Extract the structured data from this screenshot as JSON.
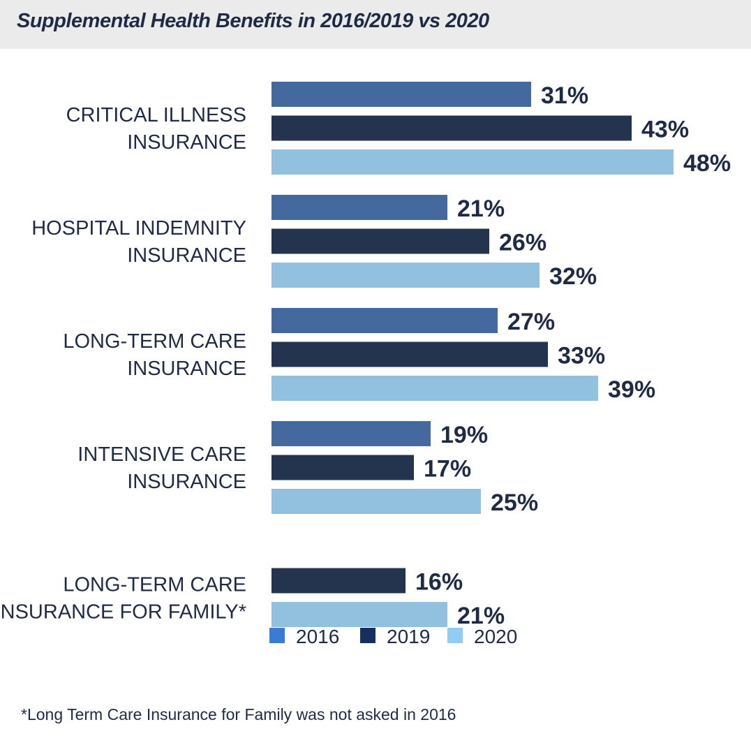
{
  "title": "Supplemental Health Benefits in 2016/2019 vs 2020",
  "footnote": "*Long Term Care Insurance for Family was not asked in 2016",
  "colors": {
    "2016": "#44699f",
    "2019": "#24344f",
    "2020": "#91c1df",
    "legend_2016": "#3a7bd5",
    "legend_2019": "#15305a",
    "legend_2020": "#8fcdf5",
    "text": "#1f2b45",
    "title_band": "#ebebeb"
  },
  "chart_data": {
    "type": "bar",
    "orientation": "horizontal",
    "title": "Supplemental Health Benefits in 2016/2019 vs 2020",
    "xlabel": "",
    "ylabel": "",
    "xlim": [
      0,
      48
    ],
    "grid": false,
    "legend_position": "bottom",
    "value_suffix": "%",
    "categories": [
      [
        "CRITICAL ILLNESS",
        "INSURANCE"
      ],
      [
        "HOSPITAL INDEMNITY",
        "INSURANCE"
      ],
      [
        "LONG-TERM CARE",
        "INSURANCE"
      ],
      [
        "INTENSIVE CARE",
        "INSURANCE"
      ],
      [
        "LONG-TERM CARE",
        "INSURANCE FOR FAMILY*"
      ]
    ],
    "series": [
      {
        "name": "2016",
        "values": [
          31,
          21,
          27,
          19,
          null
        ]
      },
      {
        "name": "2019",
        "values": [
          43,
          26,
          33,
          17,
          16
        ]
      },
      {
        "name": "2020",
        "values": [
          48,
          32,
          39,
          25,
          21
        ]
      }
    ]
  }
}
